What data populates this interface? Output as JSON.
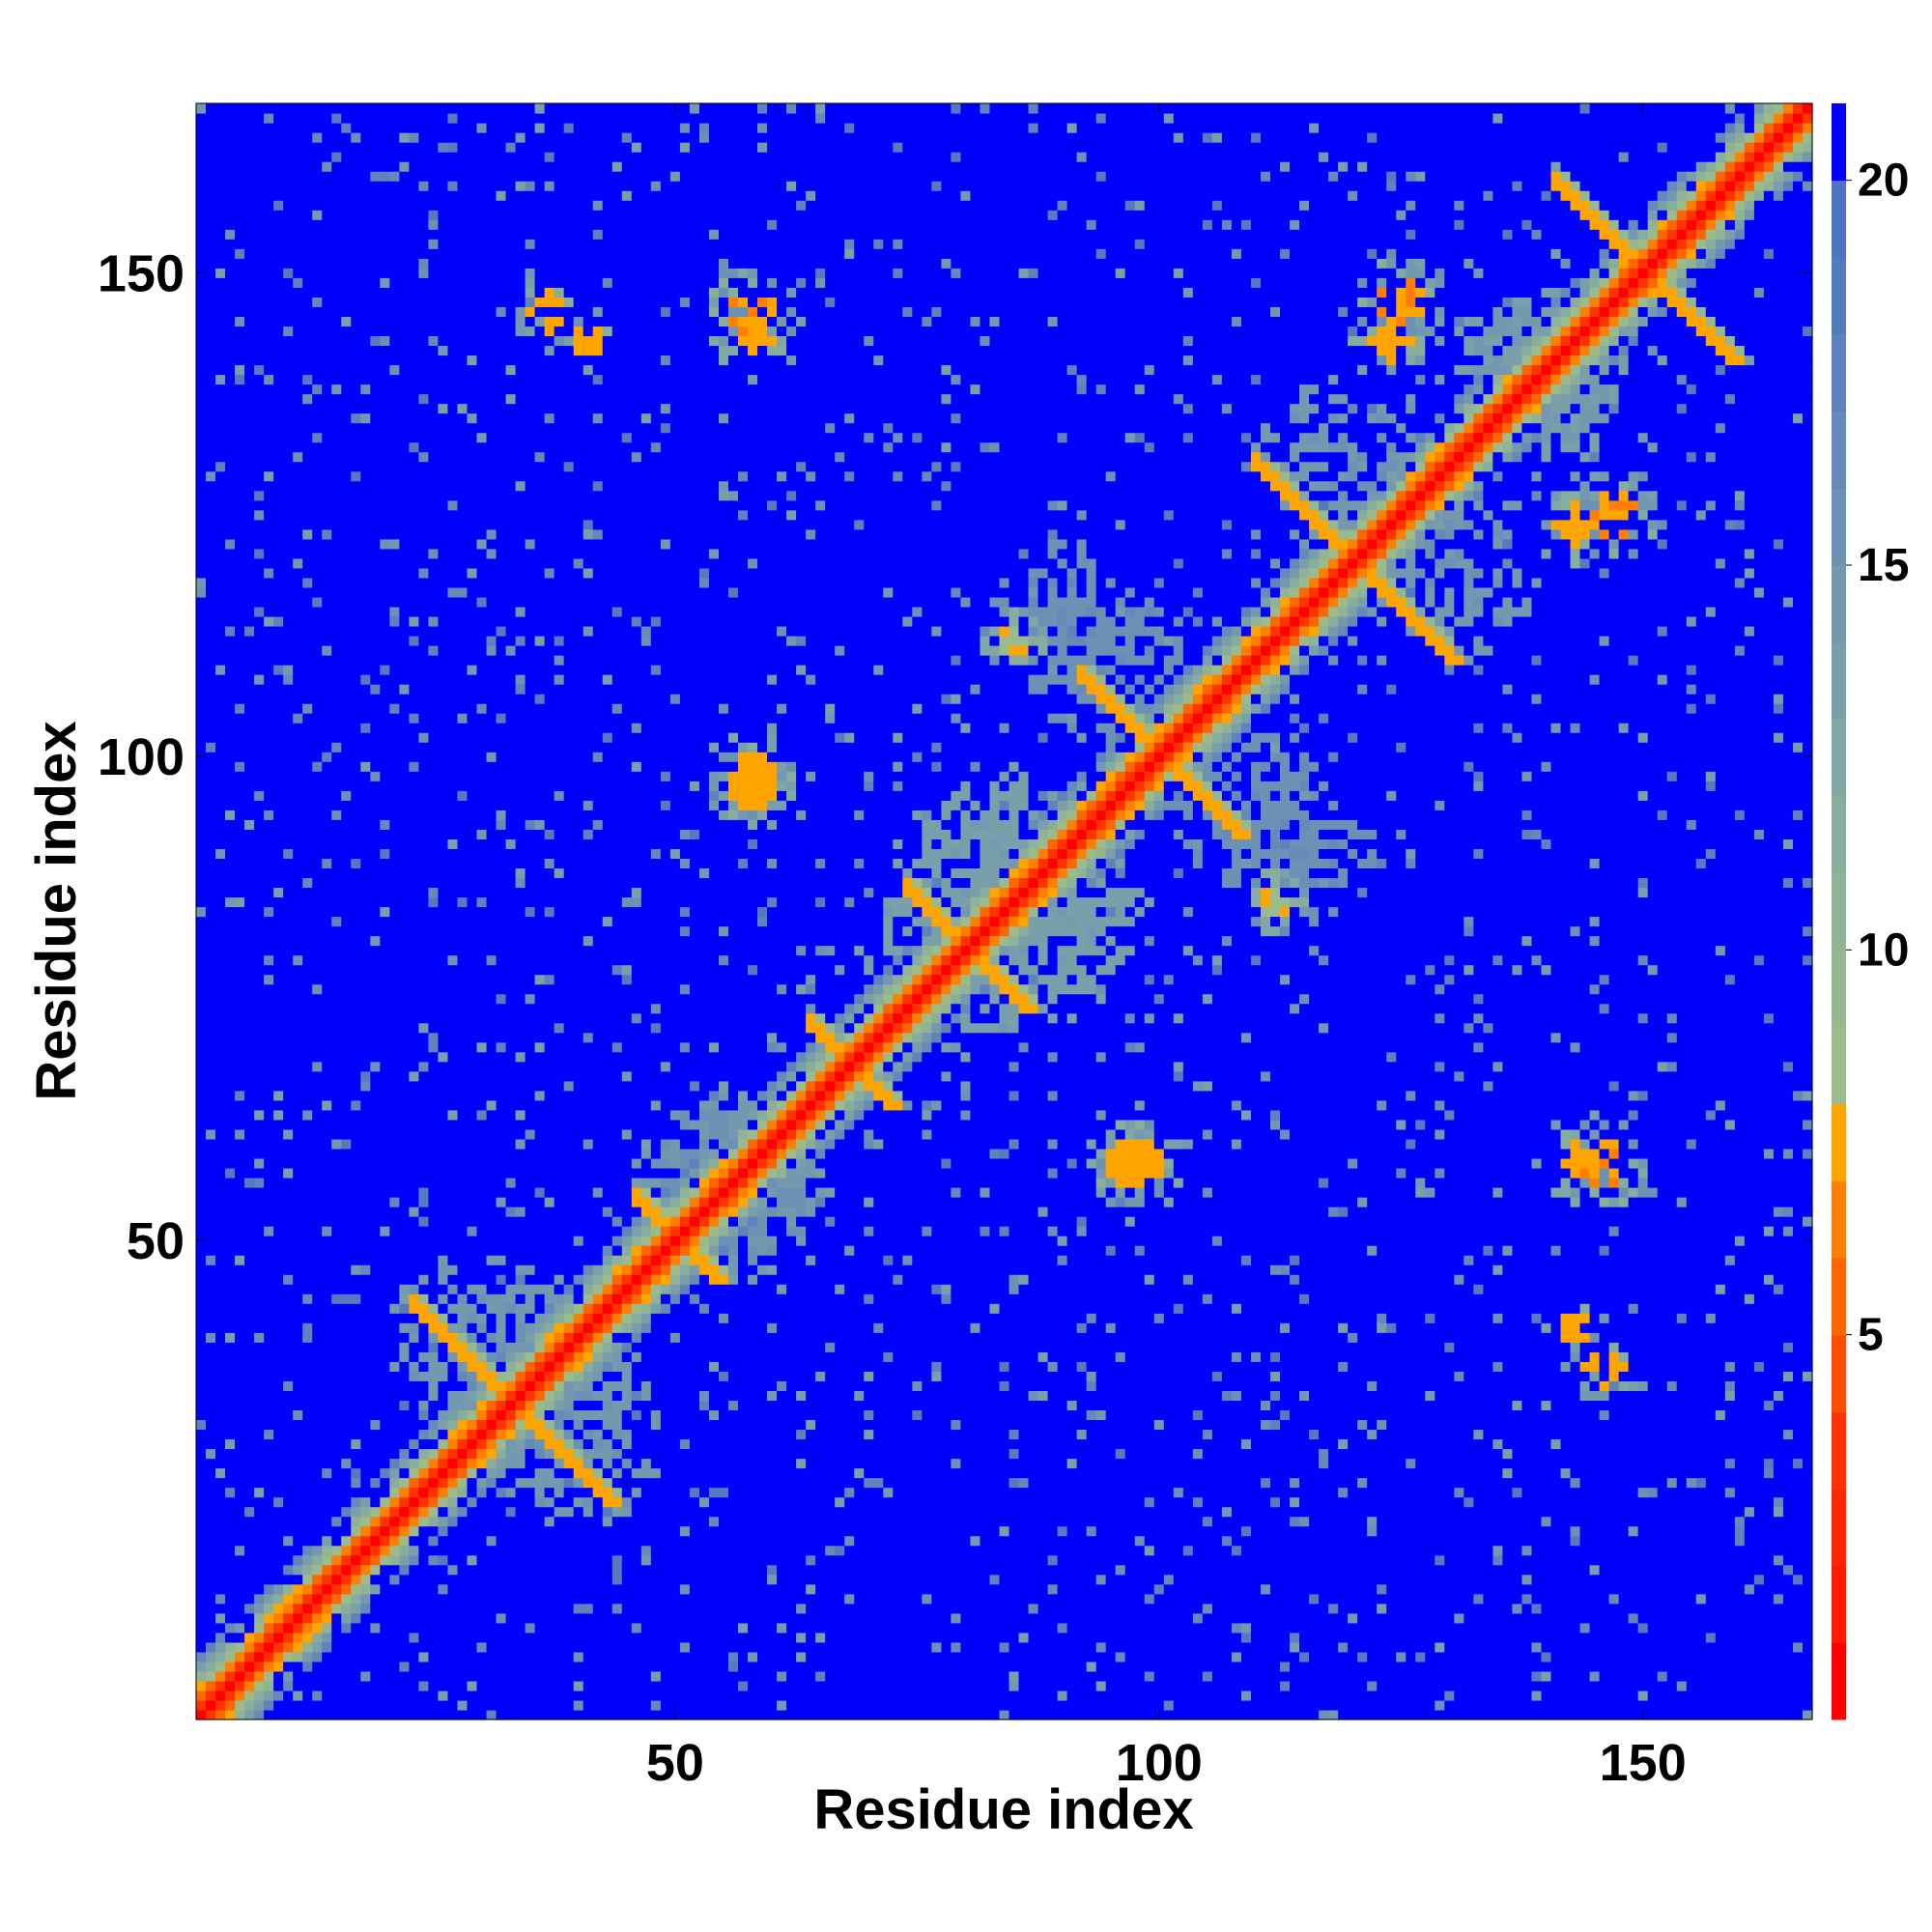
{
  "chart_data": {
    "type": "heatmap",
    "title": "",
    "xlabel": "Residue index",
    "ylabel": "Residue index",
    "n_residues": 167,
    "xlim": [
      1,
      167
    ],
    "ylim": [
      1,
      167
    ],
    "x_ticks": [
      50,
      100,
      150
    ],
    "y_ticks": [
      50,
      100,
      150
    ],
    "x_tick_labels": [
      "50",
      "100",
      "150"
    ],
    "y_tick_labels": [
      "50",
      "100",
      "150"
    ],
    "colorbar": {
      "range": [
        0,
        21
      ],
      "ticks": [
        5,
        10,
        15,
        20
      ],
      "tick_labels": [
        "5",
        "10",
        "15",
        "20"
      ],
      "bins": [
        {
          "from": 0,
          "to": 1,
          "color": "#ff0000"
        },
        {
          "from": 1,
          "to": 2,
          "color": "#ff1a00"
        },
        {
          "from": 2,
          "to": 3,
          "color": "#ff2600"
        },
        {
          "from": 3,
          "to": 4,
          "color": "#ff3300"
        },
        {
          "from": 4,
          "to": 5,
          "color": "#ff4d00"
        },
        {
          "from": 5,
          "to": 6,
          "color": "#ff6600"
        },
        {
          "from": 6,
          "to": 7,
          "color": "#ff8000"
        },
        {
          "from": 7,
          "to": 8,
          "color": "#ffa500"
        },
        {
          "from": 8,
          "to": 9,
          "color": "#9cbb8a"
        },
        {
          "from": 9,
          "to": 10,
          "color": "#95b890"
        },
        {
          "from": 10,
          "to": 11,
          "color": "#8fb396"
        },
        {
          "from": 11,
          "to": 12,
          "color": "#88ad9c"
        },
        {
          "from": 12,
          "to": 13,
          "color": "#80a7a3"
        },
        {
          "from": 13,
          "to": 14,
          "color": "#799faa"
        },
        {
          "from": 14,
          "to": 15,
          "color": "#7398b0"
        },
        {
          "from": 15,
          "to": 16,
          "color": "#6b91b5"
        },
        {
          "from": 16,
          "to": 17,
          "color": "#6589b8"
        },
        {
          "from": 17,
          "to": 18,
          "color": "#5e82bb"
        },
        {
          "from": 18,
          "to": 19,
          "color": "#567abe"
        },
        {
          "from": 19,
          "to": 20,
          "color": "#4e73c2"
        },
        {
          "from": 20,
          "to": 21,
          "color": "#0000ff"
        }
      ]
    },
    "background_value": 21,
    "diagonal_band": [
      {
        "offset": 0,
        "value": 0.5
      },
      {
        "offset": 1,
        "value": 3.5
      },
      {
        "offset": 2,
        "value": 5.5
      },
      {
        "offset": 3,
        "value": 7.5
      },
      {
        "offset": 4,
        "value": 10.5
      },
      {
        "offset": 5,
        "value": 13
      },
      {
        "offset": 6,
        "value": 16
      }
    ],
    "antidiagonal_patches": [
      {
        "center_i": 33,
        "center_j": 33,
        "half_length": 10,
        "value": 7.5
      },
      {
        "center_i": 50,
        "center_j": 50,
        "half_length": 4,
        "value": 7
      },
      {
        "center_i": 68,
        "center_j": 68,
        "half_length": 4,
        "value": 7.5
      },
      {
        "center_i": 80,
        "center_j": 80,
        "half_length": 6,
        "value": 7
      },
      {
        "center_i": 100,
        "center_j": 100,
        "half_length": 8,
        "value": 7.5
      },
      {
        "center_i": 120,
        "center_j": 120,
        "half_length": 10,
        "value": 7.5
      },
      {
        "center_i": 150,
        "center_j": 150,
        "half_length": 9,
        "value": 7.5
      }
    ],
    "contact_blobs": [
      {
        "i": 58,
        "j": 146,
        "radius": 2.5,
        "value": 6.5
      },
      {
        "i": 37,
        "j": 146,
        "radius": 2,
        "value": 7
      },
      {
        "i": 58,
        "j": 98,
        "radius": 2.5,
        "value": 7
      },
      {
        "i": 97,
        "j": 58,
        "radius": 2.5,
        "value": 7
      },
      {
        "i": 125,
        "j": 147,
        "radius": 2.5,
        "value": 6.5
      },
      {
        "i": 143,
        "j": 124,
        "radius": 2,
        "value": 7
      },
      {
        "i": 143,
        "j": 58,
        "radius": 2,
        "value": 7
      },
      {
        "i": 143,
        "j": 41,
        "radius": 1.5,
        "value": 7
      },
      {
        "i": 85,
        "j": 112,
        "radius": 1.5,
        "value": 7.5
      }
    ],
    "diffuse_regions": [
      {
        "i": 85,
        "j": 85,
        "radius": 14,
        "value": 14.5
      },
      {
        "i": 120,
        "j": 130,
        "radius": 10,
        "value": 15.5
      },
      {
        "i": 140,
        "j": 140,
        "radius": 10,
        "value": 15
      },
      {
        "i": 40,
        "j": 30,
        "radius": 10,
        "value": 15.5
      },
      {
        "i": 110,
        "j": 95,
        "radius": 9,
        "value": 16.5
      },
      {
        "i": 90,
        "j": 115,
        "radius": 8,
        "value": 16.5
      },
      {
        "i": 55,
        "j": 55,
        "radius": 10,
        "value": 16
      }
    ]
  }
}
